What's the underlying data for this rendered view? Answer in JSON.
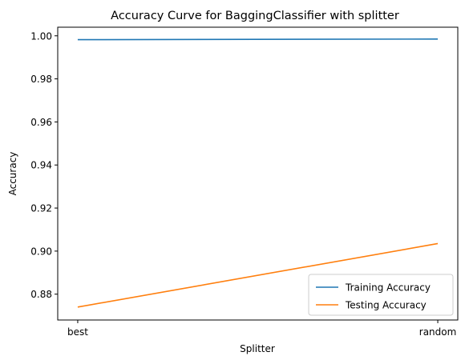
{
  "chart_data": {
    "type": "line",
    "title": "Accuracy Curve for BaggingClassifier with splitter",
    "xlabel": "Splitter",
    "ylabel": "Accuracy",
    "categories": [
      "best",
      "random"
    ],
    "ylim": [
      0.868,
      1.004
    ],
    "yticks": [
      0.88,
      0.9,
      0.92,
      0.94,
      0.96,
      0.98,
      1.0
    ],
    "ytick_labels": [
      "0.88",
      "0.90",
      "0.92",
      "0.94",
      "0.96",
      "0.98",
      "1.00"
    ],
    "grid": false,
    "legend_position": "lower-right",
    "series": [
      {
        "name": "Training Accuracy",
        "color": "#1f77b4",
        "values": [
          0.9982,
          0.9985
        ]
      },
      {
        "name": "Testing Accuracy",
        "color": "#ff7f0e",
        "values": [
          0.874,
          0.9035
        ]
      }
    ]
  }
}
